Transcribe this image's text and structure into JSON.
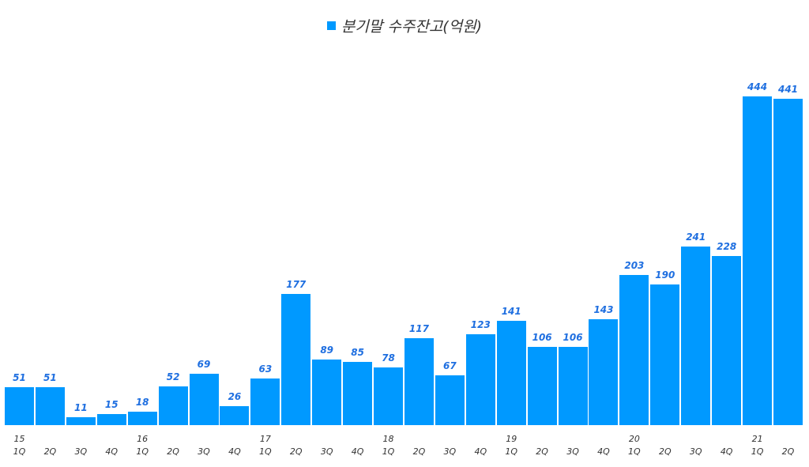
{
  "legend": {
    "label": "분기말 수주잔고(억원)",
    "color": "#0099ff"
  },
  "chart_data": {
    "type": "bar",
    "title": "",
    "legend": [
      "분기말 수주잔고(억원)"
    ],
    "legend_position": "top",
    "xlabel": "",
    "ylabel": "",
    "grid": false,
    "ylim": [
      0,
      470
    ],
    "categories": [
      "15 1Q",
      "2Q",
      "3Q",
      "4Q",
      "16 1Q",
      "2Q",
      "3Q",
      "4Q",
      "17 1Q",
      "2Q",
      "3Q",
      "4Q",
      "18 1Q",
      "2Q",
      "3Q",
      "4Q",
      "19 1Q",
      "2Q",
      "3Q",
      "4Q",
      "20 1Q",
      "2Q",
      "3Q",
      "4Q",
      "21 1Q",
      "2Q"
    ],
    "year_labels": [
      "15",
      "",
      "",
      "",
      "16",
      "",
      "",
      "",
      "17",
      "",
      "",
      "",
      "18",
      "",
      "",
      "",
      "19",
      "",
      "",
      "",
      "20",
      "",
      "",
      "",
      "21",
      ""
    ],
    "quarter_labels": [
      "1Q",
      "2Q",
      "3Q",
      "4Q",
      "1Q",
      "2Q",
      "3Q",
      "4Q",
      "1Q",
      "2Q",
      "3Q",
      "4Q",
      "1Q",
      "2Q",
      "3Q",
      "4Q",
      "1Q",
      "2Q",
      "3Q",
      "4Q",
      "1Q",
      "2Q",
      "3Q",
      "4Q",
      "1Q",
      "2Q"
    ],
    "series": [
      {
        "name": "분기말 수주잔고(억원)",
        "color": "#0099ff",
        "values": [
          51,
          51,
          11,
          15,
          18,
          52,
          69,
          26,
          63,
          177,
          89,
          85,
          78,
          117,
          67,
          123,
          141,
          106,
          106,
          143,
          203,
          190,
          241,
          228,
          444,
          441
        ]
      }
    ]
  }
}
